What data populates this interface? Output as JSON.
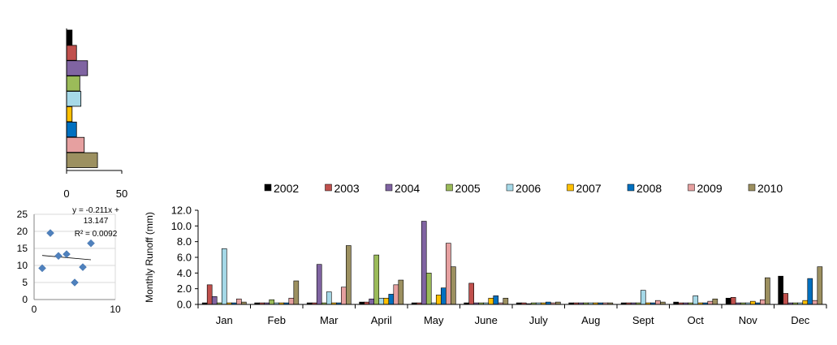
{
  "colors": {
    "2002": "#000000",
    "2003": "#c0504d",
    "2004": "#8064a2",
    "2005": "#9bbb59",
    "2006": "#a6d9e8",
    "2007": "#ffc000",
    "2008": "#0070c0",
    "2009": "#e6a0a0",
    "2010": "#9c9060",
    "scatter_point": "#4f81bd"
  },
  "chart_data": [
    {
      "type": "bar",
      "orientation": "horizontal",
      "categories": [
        "2002",
        "2003",
        "2004",
        "2005",
        "2006",
        "2007",
        "2008",
        "2009",
        "2010"
      ],
      "values": [
        5,
        9,
        19,
        12,
        13,
        5,
        9,
        16,
        28
      ],
      "xlim": [
        0,
        50
      ],
      "xticks": [
        "0",
        "50"
      ],
      "title": "",
      "xlabel": "",
      "ylabel": ""
    },
    {
      "type": "scatter",
      "points": [
        [
          1,
          9.2
        ],
        [
          2,
          19.5
        ],
        [
          3,
          12.8
        ],
        [
          4,
          13.3
        ],
        [
          5,
          5.0
        ],
        [
          6,
          9.5
        ],
        [
          7,
          16.5
        ]
      ],
      "trendline": {
        "slope": -0.211,
        "intercept": 13.147
      },
      "annotation": [
        "y = -0.211x +",
        "13.147",
        "R² = 0.0092"
      ],
      "xlim": [
        0,
        10
      ],
      "ylim": [
        0,
        25
      ],
      "xticks": [
        "0",
        "10"
      ],
      "yticks": [
        "0",
        "5",
        "10",
        "15",
        "20",
        "25"
      ],
      "title": "",
      "xlabel": "",
      "ylabel": ""
    },
    {
      "type": "bar",
      "categories": [
        "Jan",
        "Feb",
        "Mar",
        "April",
        "May",
        "June",
        "July",
        "Aug",
        "Sept",
        "Oct",
        "Nov",
        "Dec"
      ],
      "series": [
        {
          "name": "2002",
          "values": [
            0.2,
            0.2,
            0.2,
            0.3,
            0.2,
            0.2,
            0.2,
            0.2,
            0.2,
            0.3,
            0.8,
            3.6
          ]
        },
        {
          "name": "2003",
          "values": [
            2.5,
            0.2,
            0.2,
            0.3,
            0.2,
            2.7,
            0.2,
            0.2,
            0.2,
            0.2,
            0.9,
            1.4
          ]
        },
        {
          "name": "2004",
          "values": [
            1.0,
            0.2,
            5.1,
            0.7,
            10.6,
            0.2,
            0.1,
            0.2,
            0.2,
            0.2,
            0.2,
            0.2
          ]
        },
        {
          "name": "2005",
          "values": [
            0.2,
            0.6,
            0.2,
            6.3,
            4.0,
            0.2,
            0.2,
            0.2,
            0.2,
            0.2,
            0.2,
            0.2
          ]
        },
        {
          "name": "2006",
          "values": [
            7.1,
            0.2,
            1.6,
            0.8,
            0.2,
            0.2,
            0.2,
            0.2,
            1.8,
            1.1,
            0.2,
            0.2
          ]
        },
        {
          "name": "2007",
          "values": [
            0.2,
            0.2,
            0.2,
            0.8,
            1.2,
            0.8,
            0.2,
            0.2,
            0.2,
            0.2,
            0.4,
            0.5
          ]
        },
        {
          "name": "2008",
          "values": [
            0.2,
            0.2,
            0.2,
            1.3,
            2.1,
            1.1,
            0.3,
            0.2,
            0.2,
            0.2,
            0.2,
            3.3
          ]
        },
        {
          "name": "2009",
          "values": [
            0.7,
            0.8,
            2.2,
            2.5,
            7.8,
            0.2,
            0.2,
            0.2,
            0.5,
            0.4,
            0.6,
            0.5
          ]
        },
        {
          "name": "2010",
          "values": [
            0.3,
            3.0,
            7.5,
            3.1,
            4.8,
            0.8,
            0.3,
            0.2,
            0.3,
            0.7,
            3.4,
            4.8
          ]
        }
      ],
      "ylim": [
        0,
        12
      ],
      "yticks": [
        "0.0",
        "2.0",
        "4.0",
        "6.0",
        "8.0",
        "10.0",
        "12.0"
      ],
      "title": "",
      "xlabel": "",
      "ylabel": "Monthly  Runoff (mm)",
      "legend": "top",
      "grid": false
    }
  ]
}
